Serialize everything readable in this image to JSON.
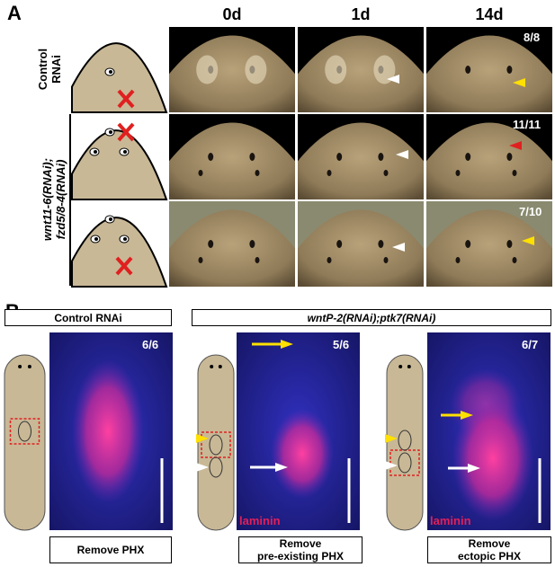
{
  "panel_a": {
    "label": "A",
    "columns": [
      "0d",
      "1d",
      "14d"
    ],
    "rows": [
      {
        "label": [
          "Control",
          "RNAi"
        ],
        "count": "8/8"
      },
      {
        "count": "11/11"
      },
      {
        "count": "7/10"
      }
    ],
    "group_label": [
      "wnt11-6(RNAi);",
      "fzd5/8-4(RNAi)"
    ]
  },
  "panel_b": {
    "label": "B",
    "groups": [
      "Control RNAi",
      "wntP-2(RNAi);ptk7(RNAi)"
    ],
    "panels": [
      {
        "count": "6/6",
        "action": [
          "Remove PHX"
        ]
      },
      {
        "count": "5/6",
        "stain": "laminin",
        "action": [
          "Remove",
          "pre-existing PHX"
        ]
      },
      {
        "count": "6/7",
        "stain": "laminin",
        "action": [
          "Remove",
          "ectopic PHX"
        ]
      }
    ]
  }
}
